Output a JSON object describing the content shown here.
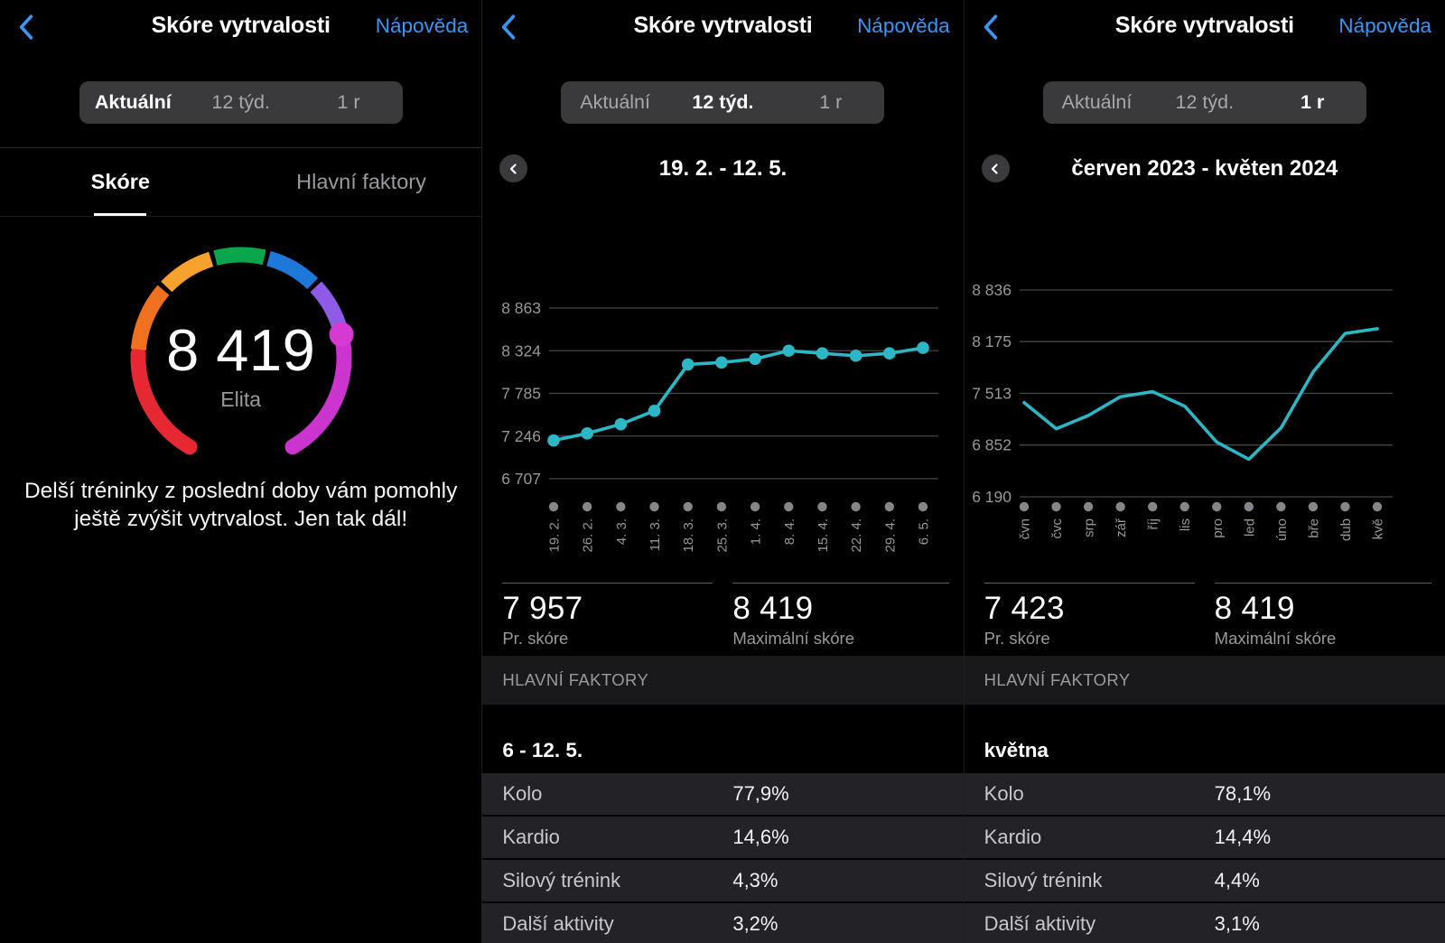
{
  "theme": {
    "background": "#000000",
    "accent_blue": "#3a96f5",
    "line_teal": "#2bb7c5",
    "muted_gray": "#9a9a9e",
    "segmented_bg": "#3a3a3c",
    "row_bg": "#232327"
  },
  "panels": [
    {
      "header": {
        "back_icon": "chevron-left-icon",
        "title": "Skóre vytrvalosti",
        "help_label": "Nápověda"
      },
      "segmented": {
        "options": [
          "Aktuální",
          "12 týd.",
          "1 r"
        ],
        "selected": 0
      },
      "tabs": {
        "items": [
          "Skóre",
          "Hlavní faktory"
        ],
        "selected": 0
      },
      "gauge": {
        "value": "8 419",
        "label": "Elita",
        "segments": [
          {
            "from": 210,
            "to": 272,
            "color": "#e52831",
            "cap": "round"
          },
          {
            "from": 274.5,
            "to": 311,
            "color": "#ef701e"
          },
          {
            "from": 313.5,
            "to": 343,
            "color": "#f7a12f"
          },
          {
            "from": 345.5,
            "to": 373,
            "color": "#0aa64b"
          },
          {
            "from": 375.5,
            "to": 404,
            "color": "#1d78d9"
          },
          {
            "from": 406.5,
            "to": 434,
            "color": "#8d5be6"
          },
          {
            "from": 438,
            "to": 510,
            "color": "#cb34ce",
            "cap": "round"
          }
        ],
        "marker": {
          "angle": 437,
          "color": "#d53bd3"
        }
      },
      "advice": "Delší tréninky z poslední doby vám pomohly ještě zvýšit vytrvalost. Jen tak dál!"
    },
    {
      "header": {
        "back_icon": "chevron-left-icon",
        "title": "Skóre vytrvalosti",
        "help_label": "Nápověda"
      },
      "segmented": {
        "options": [
          "Aktuální",
          "12 týd.",
          "1 r"
        ],
        "selected": 1
      },
      "period": {
        "back_icon": "chevron-left-icon",
        "label": "19. 2. - 12. 5."
      },
      "chart_data": {
        "type": "line",
        "title": "19. 2. - 12. 5.",
        "x_labels": [
          "19. 2.",
          "26. 2.",
          "4. 3.",
          "11. 3.",
          "18. 3.",
          "25. 3.",
          "1. 4.",
          "8. 4.",
          "15. 4.",
          "22. 4.",
          "29. 4.",
          "6. 5."
        ],
        "values": [
          7190,
          7280,
          7395,
          7565,
          8150,
          8175,
          8220,
          8324,
          8290,
          8260,
          8290,
          8360
        ],
        "y_ticks": [
          8863,
          8324,
          7785,
          7246,
          6707
        ],
        "ylim": [
          6707,
          8863
        ],
        "grid": true,
        "show_points": true,
        "line_color": "#2bb7c5"
      },
      "stats": [
        {
          "value": "7 957",
          "label": "Pr. skóre"
        },
        {
          "value": "8 419",
          "label": "Maximální skóre"
        }
      ],
      "section_title": "HLAVNÍ FAKTORY",
      "table": {
        "header": "6 - 12. 5.",
        "rows": [
          {
            "label": "Kolo",
            "value": "77,9%"
          },
          {
            "label": "Kardio",
            "value": "14,6%"
          },
          {
            "label": "Silový trénink",
            "value": "4,3%"
          },
          {
            "label": "Další aktivity",
            "value": "3,2%"
          }
        ]
      }
    },
    {
      "header": {
        "back_icon": "chevron-left-icon",
        "title": "Skóre vytrvalosti",
        "help_label": "Nápověda"
      },
      "segmented": {
        "options": [
          "Aktuální",
          "12 týd.",
          "1 r"
        ],
        "selected": 2
      },
      "period": {
        "back_icon": "chevron-left-icon",
        "label": "červen 2023 - květen 2024"
      },
      "chart_data": {
        "type": "line",
        "title": "červen 2023 - květen 2024",
        "x_labels": [
          "čvn",
          "čvc",
          "srp",
          "zář",
          "říj",
          "lis",
          "pro",
          "led",
          "úno",
          "bře",
          "dub",
          "kvě"
        ],
        "values": [
          7395,
          7060,
          7230,
          7470,
          7535,
          7350,
          6890,
          6670,
          7070,
          7785,
          8280,
          8340
        ],
        "y_ticks": [
          8836,
          8175,
          7513,
          6852,
          6190
        ],
        "ylim": [
          6190,
          8836
        ],
        "grid": true,
        "show_points": false,
        "line_color": "#2bb7c5"
      },
      "stats": [
        {
          "value": "7 423",
          "label": "Pr. skóre"
        },
        {
          "value": "8 419",
          "label": "Maximální skóre"
        }
      ],
      "section_title": "HLAVNÍ FAKTORY",
      "table": {
        "header": "května",
        "rows": [
          {
            "label": "Kolo",
            "value": "78,1%"
          },
          {
            "label": "Kardio",
            "value": "14,4%"
          },
          {
            "label": "Silový trénink",
            "value": "4,4%"
          },
          {
            "label": "Další aktivity",
            "value": "3,1%"
          }
        ]
      }
    }
  ]
}
